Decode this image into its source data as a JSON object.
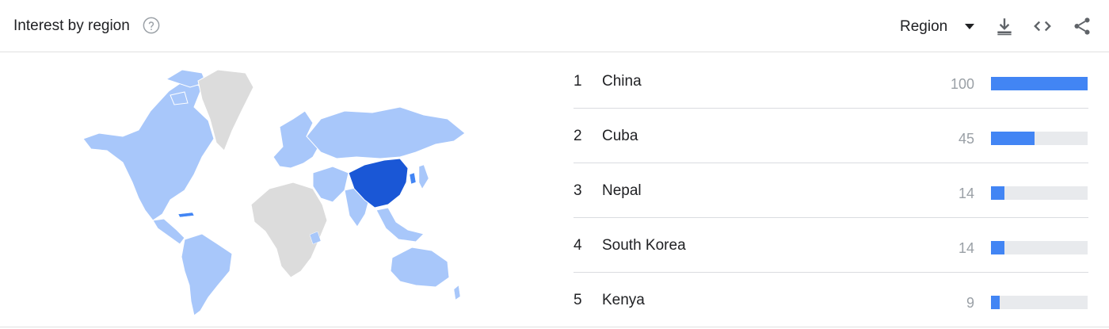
{
  "header": {
    "title": "Interest by region",
    "region_label": "Region",
    "icons": [
      "help-icon",
      "download-icon",
      "embed-icon",
      "share-icon",
      "caret-down-icon"
    ]
  },
  "map": {
    "highlight_color": "#1a57d6",
    "light_color": "#a8c7fa",
    "neutral_color": "#dcdcdc"
  },
  "regions": [
    {
      "rank": "1",
      "name": "China",
      "score": "100",
      "value": 100
    },
    {
      "rank": "2",
      "name": "Cuba",
      "score": "45",
      "value": 45
    },
    {
      "rank": "3",
      "name": "Nepal",
      "score": "14",
      "value": 14
    },
    {
      "rank": "4",
      "name": "South Korea",
      "score": "14",
      "value": 14
    },
    {
      "rank": "5",
      "name": "Kenya",
      "score": "9",
      "value": 9
    }
  ],
  "colors": {
    "bar": "#4285f4",
    "track": "#e8eaed",
    "accent": "#1a73e8"
  }
}
